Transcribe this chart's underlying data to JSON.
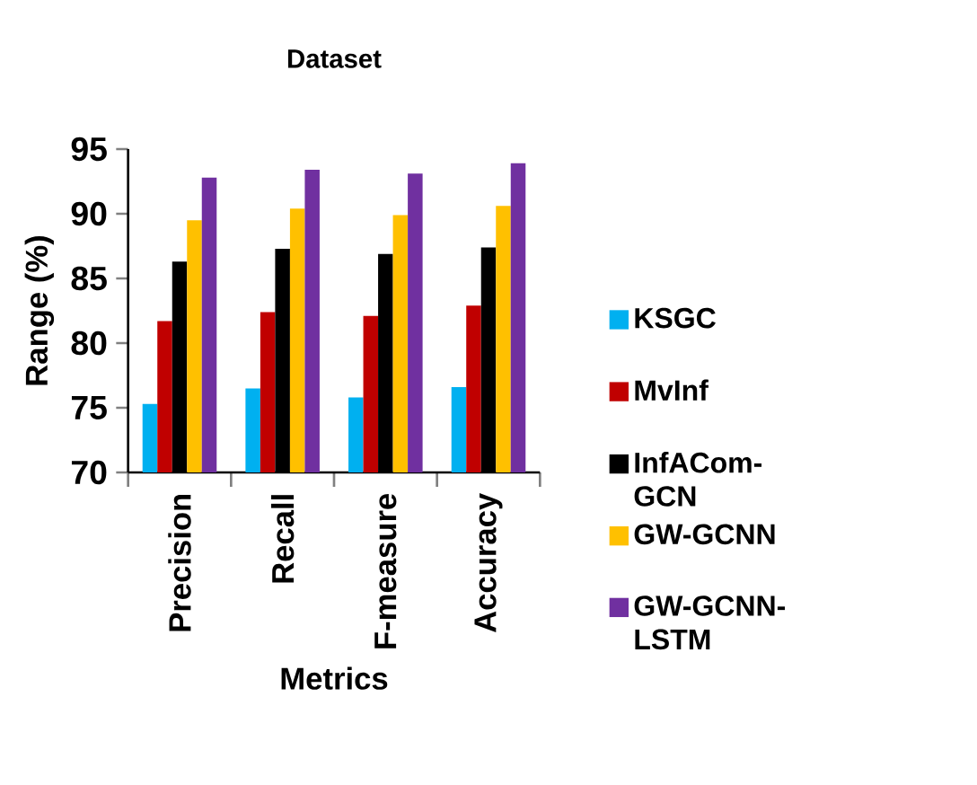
{
  "chart_data": {
    "type": "bar",
    "title": "Dataset",
    "xlabel": "Metrics",
    "ylabel": "Range (%)",
    "categories": [
      "Precision",
      "Recall",
      "F-measure",
      "Accuracy"
    ],
    "series": [
      {
        "name": "KSGC",
        "color": "#00b0f0",
        "values": [
          75.3,
          76.5,
          75.8,
          76.6
        ]
      },
      {
        "name": "MvInf",
        "color": "#c00000",
        "values": [
          81.7,
          82.4,
          82.1,
          82.9
        ]
      },
      {
        "name": "InfACom-GCN",
        "color": "#000000",
        "values": [
          86.3,
          87.3,
          86.9,
          87.4
        ]
      },
      {
        "name": "GW-GCNN",
        "color": "#ffc000",
        "values": [
          89.5,
          90.4,
          89.9,
          90.6
        ]
      },
      {
        "name": "GW-GCNN-LSTM",
        "color": "#7030a0",
        "values": [
          92.8,
          93.4,
          93.1,
          93.9
        ]
      }
    ],
    "ylim": [
      70,
      95
    ],
    "yticks": [
      70,
      75,
      80,
      85,
      90,
      95
    ],
    "legend": "right",
    "grid": false
  }
}
